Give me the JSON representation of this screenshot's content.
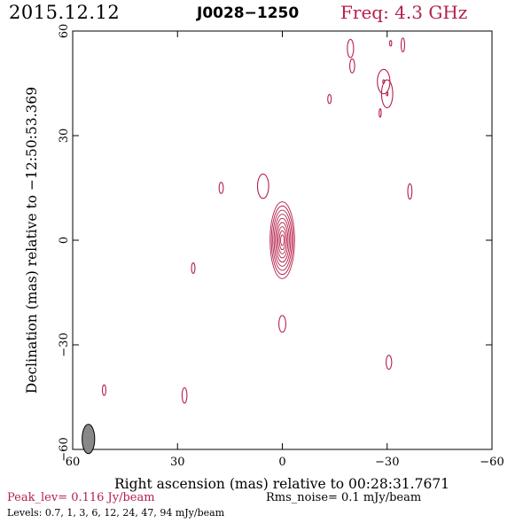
{
  "header": {
    "date": "2015.12.12",
    "source": "J0028−1250",
    "frequency": "Freq: 4.3 GHz"
  },
  "footer": {
    "peak_level": "Peak_lev=  0.116 Jy/beam",
    "rms_noise": "Rms_noise=  0.1 mJy/beam",
    "levels": "Levels: 0.7,   1,   3,   6,  12,  24,  47,  94 mJy/beam"
  },
  "colors": {
    "contour": "#b5204a",
    "beam_fill": "#888888",
    "text_accent": "#b5204a"
  },
  "chart_data": {
    "type": "contour",
    "xlabel": "Right ascension (mas) relative to 00:28:31.7671",
    "ylabel": "Declination (mas) relative to −12:50:53.369",
    "xlim": [
      60,
      -60
    ],
    "ylim": [
      -60,
      60
    ],
    "x_ticks": [
      60,
      30,
      0,
      -30,
      -60
    ],
    "y_ticks": [
      -60,
      -30,
      0,
      30,
      60
    ],
    "x_tick_labels": [
      "60",
      "30",
      "0",
      "−30",
      "−60"
    ],
    "y_tick_labels": [
      "−60",
      "−30",
      "0",
      "30",
      "60"
    ],
    "contour_levels_mjy_per_beam": [
      0.7,
      1,
      3,
      6,
      12,
      24,
      47,
      94
    ],
    "core": {
      "x": 0,
      "y": 0
    },
    "components": [
      {
        "x": 0,
        "y": 0,
        "w": 3.5,
        "h": 11.0,
        "n": 9
      },
      {
        "x": 5.5,
        "y": 15.5,
        "w": 1.6,
        "h": 3.5,
        "n": 1
      },
      {
        "x": 17.5,
        "y": 15.0,
        "w": 0.6,
        "h": 1.6,
        "n": 1
      },
      {
        "x": 25.5,
        "y": -8.0,
        "w": 0.5,
        "h": 1.5,
        "n": 1
      },
      {
        "x": 0,
        "y": -24.0,
        "w": 1.0,
        "h": 2.4,
        "n": 1
      },
      {
        "x": 28.0,
        "y": -44.5,
        "w": 0.7,
        "h": 2.2,
        "n": 1
      },
      {
        "x": 51.0,
        "y": -43.0,
        "w": 0.5,
        "h": 1.5,
        "n": 1
      },
      {
        "x": -30.5,
        "y": -35.0,
        "w": 0.8,
        "h": 2.0,
        "n": 1
      },
      {
        "x": -29.0,
        "y": 45.5,
        "w": 1.8,
        "h": 3.5,
        "n": 2
      },
      {
        "x": -30.0,
        "y": 42.0,
        "w": 1.6,
        "h": 4.0,
        "n": 2
      },
      {
        "x": -19.5,
        "y": 55.0,
        "w": 0.9,
        "h": 2.6,
        "n": 1
      },
      {
        "x": -20.0,
        "y": 50.0,
        "w": 0.7,
        "h": 2.0,
        "n": 1
      },
      {
        "x": -34.5,
        "y": 56.0,
        "w": 0.5,
        "h": 2.0,
        "n": 1
      },
      {
        "x": -31.0,
        "y": 56.5,
        "w": 0.3,
        "h": 0.8,
        "n": 1
      },
      {
        "x": -28.0,
        "y": 36.5,
        "w": 0.3,
        "h": 1.2,
        "n": 1
      },
      {
        "x": -13.5,
        "y": 40.5,
        "w": 0.5,
        "h": 1.3,
        "n": 1
      },
      {
        "x": -36.5,
        "y": 14.0,
        "w": 0.6,
        "h": 2.2,
        "n": 1
      }
    ],
    "beam": {
      "x": 55.5,
      "y": -57.0,
      "w": 1.8,
      "h": 4.2
    }
  }
}
